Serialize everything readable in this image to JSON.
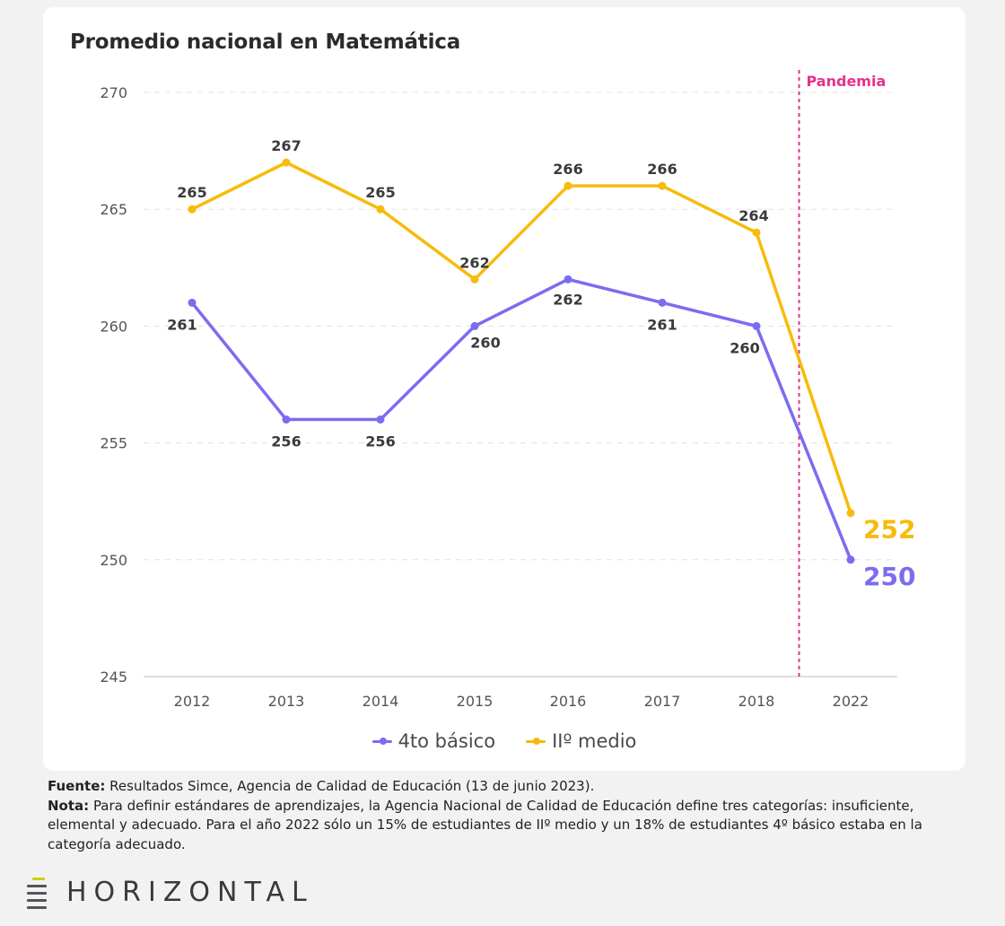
{
  "title": "Promedio nacional en Matemática",
  "chart_data": {
    "type": "line",
    "categories": [
      "2012",
      "2013",
      "2014",
      "2015",
      "2016",
      "2017",
      "2018",
      "2022"
    ],
    "series": [
      {
        "name": "4to básico",
        "color": "#7b6cf0",
        "values": [
          261,
          256,
          256,
          260,
          262,
          261,
          260,
          250
        ]
      },
      {
        "name": "IIº medio",
        "color": "#f7bb0c",
        "values": [
          265,
          267,
          265,
          262,
          266,
          266,
          264,
          252
        ]
      }
    ],
    "ylim": [
      245,
      270
    ],
    "yticks": [
      "245",
      "250",
      "255",
      "260",
      "265",
      "270"
    ],
    "grid": "dashed-horizontal",
    "legend": "bottom-center",
    "annotation": {
      "label": "Pandemia",
      "color": "#e8318a",
      "between": [
        "2018",
        "2022"
      ]
    },
    "xlabel": "",
    "ylabel": ""
  },
  "notes": {
    "source_label": "Fuente:",
    "source_text": "Resultados Simce, Agencia de Calidad de Educación (13 de junio 2023).",
    "note_label": "Nota:",
    "note_text": "Para definir estándares de aprendizajes, la Agencia Nacional de Calidad de Educación define tres categorías: insuficiente, elemental y adecuado. Para el año 2022 sólo un 15% de estudiantes de IIº medio y un 18% de estudiantes 4º básico estaba en la categoría adecuado."
  },
  "brand": {
    "name": "HORIZONTAL",
    "logo_icon": "stacked-bars-logo",
    "accent": "#c8d400"
  }
}
